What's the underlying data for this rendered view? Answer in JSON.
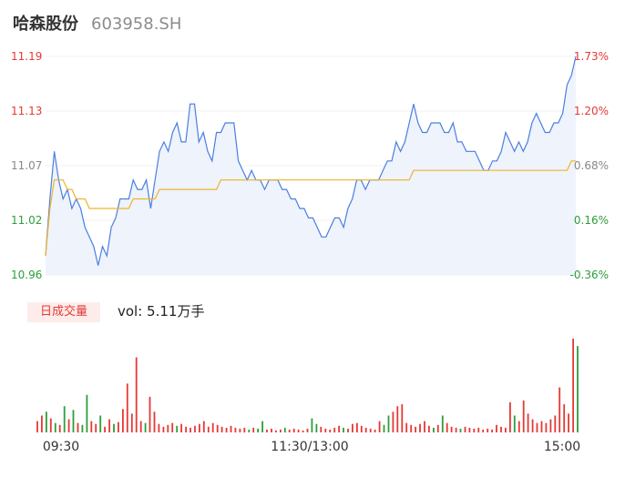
{
  "header": {
    "name": "哈森股份",
    "code": "603958.SH"
  },
  "colors": {
    "price_line": "#4a7fe0",
    "avg_line": "#f0b429",
    "up": "#e53935",
    "down": "#2e9d3b",
    "fill": "#eef3fc"
  },
  "volume": {
    "badge": "日成交量",
    "label": "vol: 5.11万手"
  },
  "chart_data": {
    "type": "line",
    "y_labels_left": [
      "11.19",
      "11.13",
      "11.07",
      "11.02",
      "10.96"
    ],
    "y_labels_right": [
      "1.73%",
      "1.20%",
      "0.68%",
      "0.16%",
      "-0.36%"
    ],
    "ylim": [
      10.96,
      11.19
    ],
    "x_labels": [
      "09:30",
      "11:30/13:00",
      "15:00"
    ],
    "price": [
      10.98,
      11.04,
      11.09,
      11.06,
      11.04,
      11.05,
      11.03,
      11.04,
      11.03,
      11.01,
      11.0,
      10.99,
      10.97,
      10.99,
      10.98,
      11.01,
      11.02,
      11.04,
      11.04,
      11.04,
      11.06,
      11.05,
      11.05,
      11.06,
      11.03,
      11.06,
      11.09,
      11.1,
      11.09,
      11.11,
      11.12,
      11.1,
      11.1,
      11.14,
      11.14,
      11.1,
      11.11,
      11.09,
      11.08,
      11.11,
      11.11,
      11.12,
      11.12,
      11.12,
      11.08,
      11.07,
      11.06,
      11.07,
      11.06,
      11.06,
      11.05,
      11.06,
      11.06,
      11.06,
      11.05,
      11.05,
      11.04,
      11.04,
      11.03,
      11.03,
      11.02,
      11.02,
      11.01,
      11.0,
      11.0,
      11.01,
      11.02,
      11.02,
      11.01,
      11.03,
      11.04,
      11.06,
      11.06,
      11.05,
      11.06,
      11.06,
      11.06,
      11.07,
      11.08,
      11.08,
      11.1,
      11.09,
      11.1,
      11.12,
      11.14,
      11.12,
      11.11,
      11.11,
      11.12,
      11.12,
      11.12,
      11.11,
      11.11,
      11.12,
      11.1,
      11.1,
      11.09,
      11.09,
      11.09,
      11.08,
      11.07,
      11.07,
      11.08,
      11.08,
      11.09,
      11.11,
      11.1,
      11.09,
      11.1,
      11.09,
      11.1,
      11.12,
      11.13,
      11.12,
      11.11,
      11.11,
      11.12,
      11.12,
      11.13,
      11.16,
      11.17,
      11.19
    ],
    "avg": [
      10.98,
      11.03,
      11.06,
      11.06,
      11.06,
      11.05,
      11.05,
      11.04,
      11.04,
      11.04,
      11.03,
      11.03,
      11.03,
      11.03,
      11.03,
      11.03,
      11.03,
      11.03,
      11.03,
      11.03,
      11.04,
      11.04,
      11.04,
      11.04,
      11.04,
      11.04,
      11.05,
      11.05,
      11.05,
      11.05,
      11.05,
      11.05,
      11.05,
      11.05,
      11.05,
      11.05,
      11.05,
      11.05,
      11.05,
      11.05,
      11.06,
      11.06,
      11.06,
      11.06,
      11.06,
      11.06,
      11.06,
      11.06,
      11.06,
      11.06,
      11.06,
      11.06,
      11.06,
      11.06,
      11.06,
      11.06,
      11.06,
      11.06,
      11.06,
      11.06,
      11.06,
      11.06,
      11.06,
      11.06,
      11.06,
      11.06,
      11.06,
      11.06,
      11.06,
      11.06,
      11.06,
      11.06,
      11.06,
      11.06,
      11.06,
      11.06,
      11.06,
      11.06,
      11.06,
      11.06,
      11.06,
      11.06,
      11.06,
      11.06,
      11.07,
      11.07,
      11.07,
      11.07,
      11.07,
      11.07,
      11.07,
      11.07,
      11.07,
      11.07,
      11.07,
      11.07,
      11.07,
      11.07,
      11.07,
      11.07,
      11.07,
      11.07,
      11.07,
      11.07,
      11.07,
      11.07,
      11.07,
      11.07,
      11.07,
      11.07,
      11.07,
      11.07,
      11.07,
      11.07,
      11.07,
      11.07,
      11.07,
      11.07,
      11.07,
      11.07,
      11.08,
      11.08
    ],
    "volume_bars": [
      {
        "v": 12,
        "c": "up"
      },
      {
        "v": 18,
        "c": "up"
      },
      {
        "v": 22,
        "c": "down"
      },
      {
        "v": 15,
        "c": "up"
      },
      {
        "v": 10,
        "c": "down"
      },
      {
        "v": 8,
        "c": "up"
      },
      {
        "v": 28,
        "c": "down"
      },
      {
        "v": 14,
        "c": "up"
      },
      {
        "v": 24,
        "c": "down"
      },
      {
        "v": 10,
        "c": "up"
      },
      {
        "v": 8,
        "c": "down"
      },
      {
        "v": 40,
        "c": "down"
      },
      {
        "v": 12,
        "c": "up"
      },
      {
        "v": 9,
        "c": "up"
      },
      {
        "v": 18,
        "c": "down"
      },
      {
        "v": 6,
        "c": "up"
      },
      {
        "v": 14,
        "c": "up"
      },
      {
        "v": 9,
        "c": "down"
      },
      {
        "v": 11,
        "c": "up"
      },
      {
        "v": 25,
        "c": "up"
      },
      {
        "v": 52,
        "c": "up"
      },
      {
        "v": 20,
        "c": "up"
      },
      {
        "v": 80,
        "c": "up"
      },
      {
        "v": 12,
        "c": "up"
      },
      {
        "v": 10,
        "c": "down"
      },
      {
        "v": 38,
        "c": "up"
      },
      {
        "v": 22,
        "c": "up"
      },
      {
        "v": 9,
        "c": "up"
      },
      {
        "v": 6,
        "c": "up"
      },
      {
        "v": 8,
        "c": "up"
      },
      {
        "v": 10,
        "c": "up"
      },
      {
        "v": 7,
        "c": "down"
      },
      {
        "v": 9,
        "c": "up"
      },
      {
        "v": 6,
        "c": "up"
      },
      {
        "v": 5,
        "c": "up"
      },
      {
        "v": 7,
        "c": "up"
      },
      {
        "v": 9,
        "c": "up"
      },
      {
        "v": 12,
        "c": "up"
      },
      {
        "v": 6,
        "c": "up"
      },
      {
        "v": 10,
        "c": "up"
      },
      {
        "v": 8,
        "c": "up"
      },
      {
        "v": 6,
        "c": "up"
      },
      {
        "v": 5,
        "c": "up"
      },
      {
        "v": 7,
        "c": "up"
      },
      {
        "v": 5,
        "c": "up"
      },
      {
        "v": 4,
        "c": "up"
      },
      {
        "v": 5,
        "c": "up"
      },
      {
        "v": 3,
        "c": "down"
      },
      {
        "v": 5,
        "c": "up"
      },
      {
        "v": 4,
        "c": "down"
      },
      {
        "v": 12,
        "c": "down"
      },
      {
        "v": 3,
        "c": "up"
      },
      {
        "v": 4,
        "c": "up"
      },
      {
        "v": 2,
        "c": "up"
      },
      {
        "v": 3,
        "c": "up"
      },
      {
        "v": 5,
        "c": "down"
      },
      {
        "v": 3,
        "c": "up"
      },
      {
        "v": 4,
        "c": "up"
      },
      {
        "v": 3,
        "c": "up"
      },
      {
        "v": 2,
        "c": "up"
      },
      {
        "v": 4,
        "c": "up"
      },
      {
        "v": 15,
        "c": "down"
      },
      {
        "v": 9,
        "c": "down"
      },
      {
        "v": 6,
        "c": "up"
      },
      {
        "v": 4,
        "c": "up"
      },
      {
        "v": 3,
        "c": "up"
      },
      {
        "v": 5,
        "c": "up"
      },
      {
        "v": 7,
        "c": "up"
      },
      {
        "v": 5,
        "c": "down"
      },
      {
        "v": 4,
        "c": "up"
      },
      {
        "v": 9,
        "c": "up"
      },
      {
        "v": 10,
        "c": "up"
      },
      {
        "v": 7,
        "c": "up"
      },
      {
        "v": 5,
        "c": "up"
      },
      {
        "v": 4,
        "c": "up"
      },
      {
        "v": 3,
        "c": "up"
      },
      {
        "v": 12,
        "c": "up"
      },
      {
        "v": 8,
        "c": "down"
      },
      {
        "v": 18,
        "c": "down"
      },
      {
        "v": 22,
        "c": "up"
      },
      {
        "v": 28,
        "c": "up"
      },
      {
        "v": 30,
        "c": "up"
      },
      {
        "v": 10,
        "c": "up"
      },
      {
        "v": 8,
        "c": "up"
      },
      {
        "v": 6,
        "c": "up"
      },
      {
        "v": 9,
        "c": "up"
      },
      {
        "v": 12,
        "c": "up"
      },
      {
        "v": 7,
        "c": "up"
      },
      {
        "v": 5,
        "c": "down"
      },
      {
        "v": 8,
        "c": "up"
      },
      {
        "v": 18,
        "c": "down"
      },
      {
        "v": 10,
        "c": "up"
      },
      {
        "v": 6,
        "c": "up"
      },
      {
        "v": 5,
        "c": "up"
      },
      {
        "v": 4,
        "c": "down"
      },
      {
        "v": 6,
        "c": "up"
      },
      {
        "v": 5,
        "c": "up"
      },
      {
        "v": 4,
        "c": "up"
      },
      {
        "v": 5,
        "c": "up"
      },
      {
        "v": 3,
        "c": "up"
      },
      {
        "v": 4,
        "c": "up"
      },
      {
        "v": 3,
        "c": "up"
      },
      {
        "v": 8,
        "c": "up"
      },
      {
        "v": 6,
        "c": "up"
      },
      {
        "v": 5,
        "c": "up"
      },
      {
        "v": 32,
        "c": "up"
      },
      {
        "v": 18,
        "c": "down"
      },
      {
        "v": 12,
        "c": "up"
      },
      {
        "v": 34,
        "c": "up"
      },
      {
        "v": 20,
        "c": "up"
      },
      {
        "v": 14,
        "c": "up"
      },
      {
        "v": 10,
        "c": "up"
      },
      {
        "v": 12,
        "c": "up"
      },
      {
        "v": 10,
        "c": "up"
      },
      {
        "v": 14,
        "c": "up"
      },
      {
        "v": 18,
        "c": "up"
      },
      {
        "v": 48,
        "c": "up"
      },
      {
        "v": 30,
        "c": "up"
      },
      {
        "v": 20,
        "c": "up"
      },
      {
        "v": 100,
        "c": "up"
      },
      {
        "v": 92,
        "c": "down"
      }
    ]
  }
}
